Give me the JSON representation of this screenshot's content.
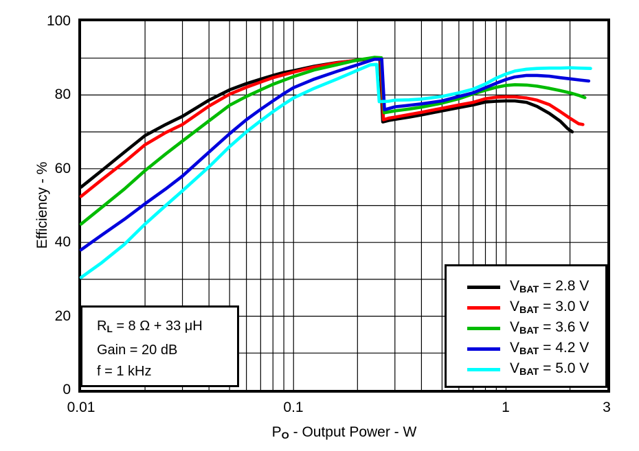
{
  "chart_data": {
    "type": "line",
    "xscale": "log",
    "xlim": [
      0.01,
      3
    ],
    "ylim": [
      0,
      100
    ],
    "grid": "on, full minor log grid, black 1px lines",
    "legend_position": "lower right",
    "ylabel": "Efficiency - %",
    "xlabel": {
      "pre": "P",
      "sub": "O",
      "post": " - Output Power - W"
    },
    "xticks": [
      {
        "value": 0.01,
        "label": "0.01"
      },
      {
        "value": 0.1,
        "label": "0.1"
      },
      {
        "value": 1,
        "label": "1"
      },
      {
        "value": 3,
        "label": "3"
      }
    ],
    "yticks": [
      {
        "value": 0,
        "label": "0"
      },
      {
        "value": 20,
        "label": "20"
      },
      {
        "value": 40,
        "label": "40"
      },
      {
        "value": 60,
        "label": "60"
      },
      {
        "value": 80,
        "label": "80"
      },
      {
        "value": 100,
        "label": "100"
      }
    ],
    "annotation": {
      "lines": [
        {
          "pre": "R",
          "sub": "L",
          "post": " = 8 Ω + 33 μH"
        },
        {
          "pre": "Gain = 20 dB",
          "sub": "",
          "post": ""
        },
        {
          "pre": "f = 1 kHz",
          "sub": "",
          "post": ""
        }
      ]
    },
    "series": [
      {
        "id": "vbat-2.8",
        "name": "VBAT = 2.8 V",
        "legend": {
          "sym": "V",
          "sub": "BAT",
          "rest": " = 2.8 V"
        },
        "color": "#000000",
        "points": [
          [
            0.01,
            55
          ],
          [
            0.0125,
            59.5
          ],
          [
            0.016,
            64.5
          ],
          [
            0.02,
            69
          ],
          [
            0.025,
            72
          ],
          [
            0.03,
            74.2
          ],
          [
            0.04,
            78.6
          ],
          [
            0.05,
            81.4
          ],
          [
            0.06,
            83.1
          ],
          [
            0.07,
            84.3
          ],
          [
            0.08,
            85.3
          ],
          [
            0.09,
            86.1
          ],
          [
            0.1,
            86.6
          ],
          [
            0.125,
            87.8
          ],
          [
            0.16,
            88.8
          ],
          [
            0.2,
            89.4
          ],
          [
            0.235,
            89.9
          ],
          [
            0.255,
            89.8
          ],
          [
            0.263,
            72.7
          ],
          [
            0.28,
            73.1
          ],
          [
            0.3,
            73.4
          ],
          [
            0.35,
            74
          ],
          [
            0.4,
            74.6
          ],
          [
            0.5,
            75.7
          ],
          [
            0.6,
            76.6
          ],
          [
            0.7,
            77.3
          ],
          [
            0.8,
            78.1
          ],
          [
            0.9,
            78.3
          ],
          [
            1.0,
            78.4
          ],
          [
            1.1,
            78.4
          ],
          [
            1.25,
            78
          ],
          [
            1.4,
            76.9
          ],
          [
            1.6,
            75
          ],
          [
            1.8,
            72.9
          ],
          [
            1.95,
            70.9
          ],
          [
            2.05,
            70
          ]
        ]
      },
      {
        "id": "vbat-3.0",
        "name": "VBAT = 3.0 V",
        "legend": {
          "sym": "V",
          "sub": "BAT",
          "rest": " = 3.0 V"
        },
        "color": "#ff0000",
        "points": [
          [
            0.01,
            52.5
          ],
          [
            0.0125,
            57
          ],
          [
            0.016,
            61.8
          ],
          [
            0.02,
            66.5
          ],
          [
            0.025,
            69.8
          ],
          [
            0.03,
            72
          ],
          [
            0.04,
            77
          ],
          [
            0.05,
            80.2
          ],
          [
            0.06,
            82.1
          ],
          [
            0.07,
            83.5
          ],
          [
            0.08,
            84.7
          ],
          [
            0.09,
            85.5
          ],
          [
            0.1,
            86.2
          ],
          [
            0.125,
            87.6
          ],
          [
            0.16,
            88.7
          ],
          [
            0.2,
            89.5
          ],
          [
            0.235,
            90
          ],
          [
            0.257,
            89.9
          ],
          [
            0.265,
            73.3
          ],
          [
            0.28,
            73.7
          ],
          [
            0.3,
            74
          ],
          [
            0.35,
            74.7
          ],
          [
            0.4,
            75.3
          ],
          [
            0.5,
            76.4
          ],
          [
            0.6,
            77.3
          ],
          [
            0.7,
            78
          ],
          [
            0.8,
            79
          ],
          [
            0.9,
            79.4
          ],
          [
            1.0,
            79.5
          ],
          [
            1.1,
            79.5
          ],
          [
            1.25,
            79.2
          ],
          [
            1.4,
            78.6
          ],
          [
            1.6,
            77.4
          ],
          [
            1.8,
            75.5
          ],
          [
            2.0,
            73.7
          ],
          [
            2.2,
            72.2
          ],
          [
            2.3,
            72
          ]
        ]
      },
      {
        "id": "vbat-3.6",
        "name": "VBAT = 3.6 V",
        "legend": {
          "sym": "V",
          "sub": "BAT",
          "rest": " = 3.6 V"
        },
        "color": "#00bb00",
        "points": [
          [
            0.01,
            45
          ],
          [
            0.0125,
            49.5
          ],
          [
            0.016,
            54.5
          ],
          [
            0.02,
            59.5
          ],
          [
            0.025,
            64
          ],
          [
            0.03,
            67.5
          ],
          [
            0.04,
            73
          ],
          [
            0.05,
            77.2
          ],
          [
            0.06,
            79.6
          ],
          [
            0.07,
            81.4
          ],
          [
            0.08,
            82.9
          ],
          [
            0.09,
            84
          ],
          [
            0.1,
            85
          ],
          [
            0.125,
            86.8
          ],
          [
            0.16,
            88.2
          ],
          [
            0.2,
            89.5
          ],
          [
            0.24,
            90.2
          ],
          [
            0.259,
            90.1
          ],
          [
            0.267,
            75.2
          ],
          [
            0.3,
            75.7
          ],
          [
            0.35,
            76.2
          ],
          [
            0.4,
            76.7
          ],
          [
            0.5,
            77.8
          ],
          [
            0.6,
            79
          ],
          [
            0.7,
            80.3
          ],
          [
            0.8,
            81.3
          ],
          [
            0.9,
            82.1
          ],
          [
            1.0,
            82.6
          ],
          [
            1.1,
            82.8
          ],
          [
            1.25,
            82.7
          ],
          [
            1.4,
            82.4
          ],
          [
            1.6,
            81.8
          ],
          [
            1.8,
            81.2
          ],
          [
            2.0,
            80.6
          ],
          [
            2.2,
            79.9
          ],
          [
            2.35,
            79.3
          ]
        ]
      },
      {
        "id": "vbat-4.2",
        "name": "VBAT = 4.2 V",
        "legend": {
          "sym": "V",
          "sub": "BAT",
          "rest": " = 4.2 V"
        },
        "color": "#0000dd",
        "points": [
          [
            0.01,
            38
          ],
          [
            0.0125,
            42
          ],
          [
            0.016,
            46.3
          ],
          [
            0.02,
            50.5
          ],
          [
            0.025,
            54.5
          ],
          [
            0.03,
            58
          ],
          [
            0.04,
            64.5
          ],
          [
            0.05,
            69.5
          ],
          [
            0.06,
            73.3
          ],
          [
            0.07,
            76.1
          ],
          [
            0.08,
            78.4
          ],
          [
            0.09,
            80.4
          ],
          [
            0.1,
            82
          ],
          [
            0.125,
            84.3
          ],
          [
            0.16,
            86.4
          ],
          [
            0.2,
            88.2
          ],
          [
            0.24,
            89.7
          ],
          [
            0.26,
            89.7
          ],
          [
            0.268,
            76
          ],
          [
            0.3,
            76.8
          ],
          [
            0.35,
            77.2
          ],
          [
            0.4,
            77.6
          ],
          [
            0.5,
            78.4
          ],
          [
            0.6,
            79.6
          ],
          [
            0.7,
            80.6
          ],
          [
            0.8,
            82
          ],
          [
            0.9,
            83.2
          ],
          [
            1.0,
            84.2
          ],
          [
            1.1,
            84.9
          ],
          [
            1.25,
            85.3
          ],
          [
            1.4,
            85.3
          ],
          [
            1.6,
            85.1
          ],
          [
            1.8,
            84.7
          ],
          [
            2.0,
            84.4
          ],
          [
            2.2,
            84.1
          ],
          [
            2.45,
            83.8
          ]
        ]
      },
      {
        "id": "vbat-5.0",
        "name": "VBAT = 5.0 V",
        "legend": {
          "sym": "V",
          "sub": "BAT",
          "rest": " = 5.0 V"
        },
        "color": "#00ffff",
        "points": [
          [
            0.01,
            30.5
          ],
          [
            0.0125,
            34.5
          ],
          [
            0.016,
            39.5
          ],
          [
            0.02,
            45
          ],
          [
            0.025,
            50
          ],
          [
            0.03,
            54
          ],
          [
            0.04,
            60.5
          ],
          [
            0.05,
            66
          ],
          [
            0.06,
            70
          ],
          [
            0.07,
            73
          ],
          [
            0.08,
            75.5
          ],
          [
            0.09,
            77.5
          ],
          [
            0.1,
            79.2
          ],
          [
            0.125,
            81.8
          ],
          [
            0.16,
            84.3
          ],
          [
            0.2,
            86.7
          ],
          [
            0.23,
            88.2
          ],
          [
            0.246,
            88.3
          ],
          [
            0.253,
            78.2
          ],
          [
            0.28,
            78.3
          ],
          [
            0.3,
            78.6
          ],
          [
            0.35,
            78.7
          ],
          [
            0.4,
            78.9
          ],
          [
            0.5,
            79.6
          ],
          [
            0.6,
            80.6
          ],
          [
            0.7,
            81.6
          ],
          [
            0.8,
            83
          ],
          [
            0.9,
            84.6
          ],
          [
            1.0,
            85.7
          ],
          [
            1.1,
            86.5
          ],
          [
            1.25,
            87
          ],
          [
            1.4,
            87.2
          ],
          [
            1.6,
            87.3
          ],
          [
            1.8,
            87.3
          ],
          [
            2.0,
            87.4
          ],
          [
            2.2,
            87.3
          ],
          [
            2.5,
            87.2
          ]
        ]
      }
    ]
  }
}
